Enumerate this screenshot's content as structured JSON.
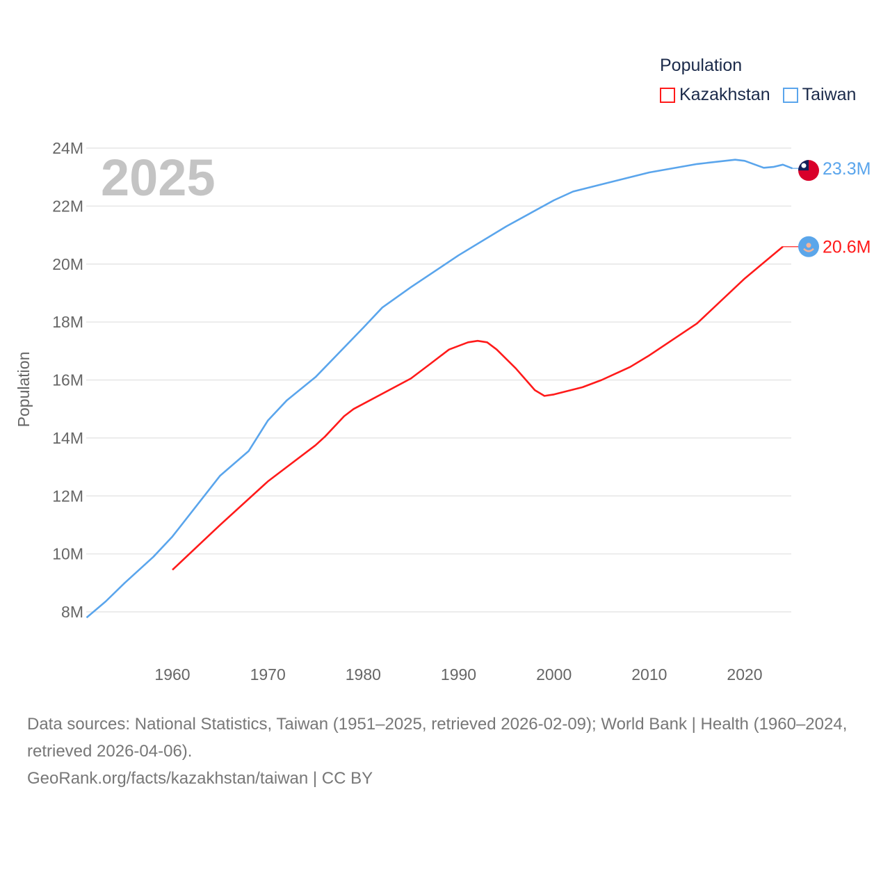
{
  "legend": {
    "title": "Population",
    "items": [
      {
        "label": "Kazakhstan",
        "color": "#ff1a1a"
      },
      {
        "label": "Taiwan",
        "color": "#5aa5ec"
      }
    ]
  },
  "year_label": "2025",
  "footer": {
    "sources": "Data sources: National Statistics, Taiwan (1951–2025, retrieved 2026-02-09); World Bank | Health (1960–2024, retrieved 2026-04-06).",
    "credit": "GeoRank.org/facts/kazakhstan/taiwan | CC BY"
  },
  "chart_data": {
    "type": "line",
    "title": "",
    "xlabel": "",
    "ylabel": "Population",
    "xlim": [
      1951,
      2025
    ],
    "ylim": [
      8,
      24
    ],
    "y_unit": "M",
    "grid": true,
    "legend_position": "top-right",
    "xticks": [
      1960,
      1970,
      1980,
      1990,
      2000,
      2010,
      2020
    ],
    "yticks": [
      8,
      10,
      12,
      14,
      16,
      18,
      20,
      22,
      24
    ],
    "ytick_labels": [
      "8M",
      "10M",
      "12M",
      "14M",
      "16M",
      "18M",
      "20M",
      "22M",
      "24M"
    ],
    "series": [
      {
        "name": "Taiwan",
        "color": "#5aa5ec",
        "end_label": "23.3M",
        "flag": "taiwan-flag",
        "x": [
          1951,
          1953,
          1955,
          1958,
          1960,
          1965,
          1968,
          1970,
          1972,
          1975,
          1980,
          1982,
          1985,
          1990,
          1995,
          2000,
          2002,
          2005,
          2010,
          2015,
          2019,
          2020,
          2022,
          2023,
          2024,
          2025
        ],
        "y": [
          7.8,
          8.36,
          9.0,
          9.9,
          10.6,
          12.7,
          13.55,
          14.6,
          15.3,
          16.1,
          17.8,
          18.5,
          19.2,
          20.3,
          21.3,
          22.2,
          22.5,
          22.75,
          23.16,
          23.45,
          23.6,
          23.56,
          23.32,
          23.35,
          23.43,
          23.3
        ]
      },
      {
        "name": "Kazakhstan",
        "color": "#ff1a1a",
        "end_label": "20.6M",
        "flag": "kazakhstan-flag",
        "x": [
          1960,
          1965,
          1970,
          1975,
          1976,
          1978,
          1979,
          1985,
          1987,
          1989,
          1991,
          1992,
          1993,
          1994,
          1996,
          1998,
          1999,
          2000,
          2003,
          2005,
          2008,
          2010,
          2015,
          2020,
          2024
        ],
        "y": [
          9.45,
          11.0,
          12.5,
          13.75,
          14.05,
          14.75,
          15.0,
          16.05,
          16.55,
          17.05,
          17.3,
          17.35,
          17.3,
          17.05,
          16.4,
          15.65,
          15.45,
          15.5,
          15.75,
          16.0,
          16.45,
          16.85,
          17.95,
          19.5,
          20.6
        ]
      }
    ]
  }
}
